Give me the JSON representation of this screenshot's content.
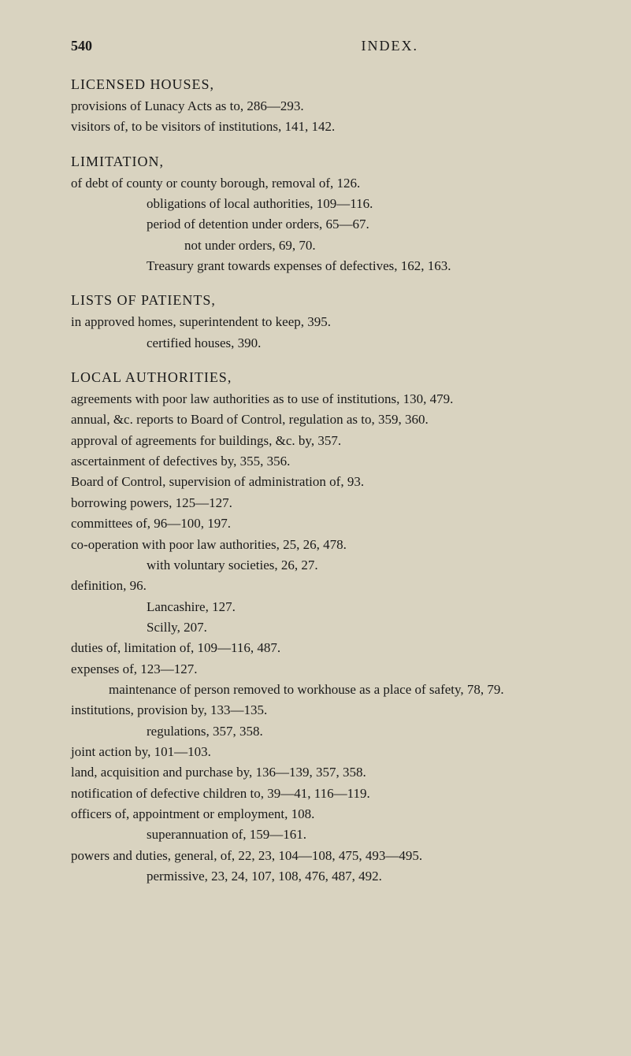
{
  "header": {
    "pageNumber": "540",
    "title": "INDEX."
  },
  "entries": {
    "licensed": {
      "heading": "LICENSED HOUSES,",
      "lines": [
        "provisions of Lunacy Acts as to, 286—293.",
        "visitors of, to be visitors of institutions, 141, 142."
      ]
    },
    "limitation": {
      "heading": "LIMITATION,",
      "lines": [
        "of debt of county or county borough, removal of, 126.",
        "obligations of local authorities, 109—116.",
        "period of detention under orders, 65—67.",
        "not under orders, 69, 70.",
        "Treasury grant towards expenses of defectives, 162, 163."
      ],
      "indents": [
        "l1",
        "l2",
        "l2",
        "l3",
        "l2"
      ]
    },
    "lists": {
      "heading": "LISTS OF PATIENTS,",
      "lines": [
        "in approved homes, superintendent to keep, 395.",
        "certified houses, 390."
      ],
      "indents": [
        "l1",
        "l2"
      ]
    },
    "local": {
      "heading": "LOCAL AUTHORITIES,",
      "lines": [
        "agreements with poor law authorities as to use of institutions, 130, 479.",
        "annual, &c. reports to Board of Control, regulation as to, 359, 360.",
        "approval of agreements for buildings, &c. by, 357.",
        "ascertainment of defectives by, 355, 356.",
        "Board of Control, supervision of administration of, 93.",
        "borrowing powers, 125—127.",
        "committees of, 96—100, 197.",
        "co-operation with poor law authorities, 25, 26, 478.",
        "with voluntary societies, 26, 27.",
        "definition, 96.",
        "Lancashire, 127.",
        "Scilly, 207.",
        "duties of, limitation of, 109—116, 487.",
        "expenses of, 123—127.",
        "maintenance of person removed to workhouse as a place of safety, 78, 79.",
        "institutions, provision by, 133—135.",
        "regulations, 357, 358.",
        "joint action by, 101—103.",
        "land, acquisition and purchase by, 136—139, 357, 358.",
        "notification of defective children to, 39—41, 116—119.",
        "officers of, appointment or employment, 108.",
        "superannuation of, 159—161.",
        "powers and duties, general, of, 22, 23, 104—108, 475, 493—495.",
        "permissive, 23, 24, 107, 108, 476, 487, 492."
      ],
      "indents": [
        "l1",
        "l1",
        "l1",
        "l1",
        "l1",
        "l1",
        "l1",
        "l1",
        "l2",
        "l1",
        "l2",
        "l2",
        "l1",
        "l1",
        "l2",
        "l1",
        "l2",
        "l1",
        "l1",
        "l1",
        "l1",
        "l2",
        "l1",
        "l2"
      ]
    }
  }
}
